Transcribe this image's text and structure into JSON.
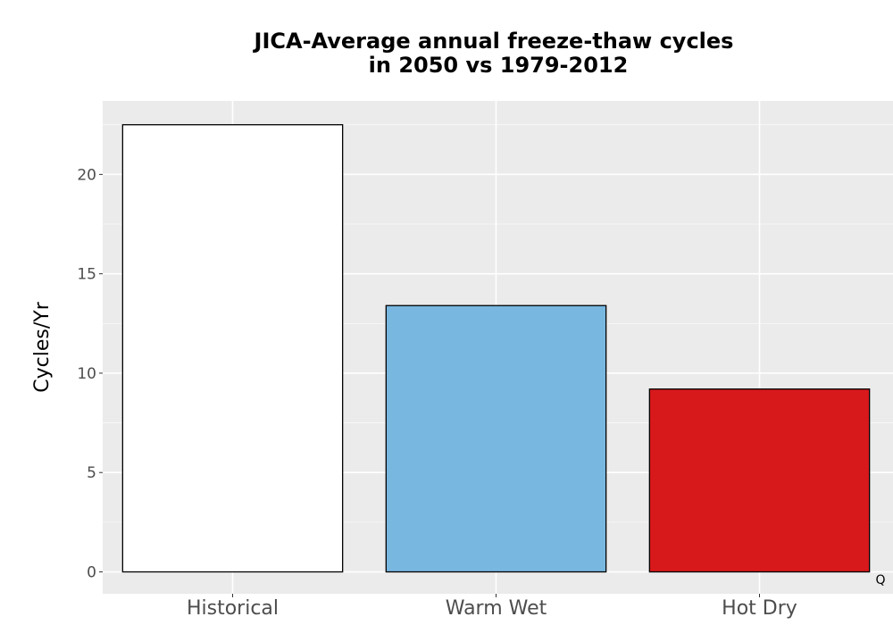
{
  "chart_data": {
    "type": "bar",
    "title": "JICA-Average annual freeze-thaw cycles in 2050 vs 1979-2012",
    "title_lines": [
      "JICA-Average annual freeze-thaw cycles",
      "in 2050 vs 1979-2012"
    ],
    "xlabel": "",
    "ylabel": "Cycles/Yr",
    "categories": [
      "Historical",
      "Warm Wet",
      "Hot Dry"
    ],
    "values": [
      22.5,
      13.4,
      9.2
    ],
    "bar_colors": [
      "#ffffff",
      "#78b7e0",
      "#d7191c"
    ],
    "bar_outline": "#000000",
    "ylim": [
      -1.1,
      23.7
    ],
    "yticks": [
      0,
      5,
      10,
      15,
      20
    ],
    "ytick_labels": [
      "0",
      "5",
      "10",
      "15",
      "20"
    ],
    "grid": true,
    "panel_background": "#ebebeb",
    "grid_color": "#ffffff"
  },
  "corner_label": "Q"
}
